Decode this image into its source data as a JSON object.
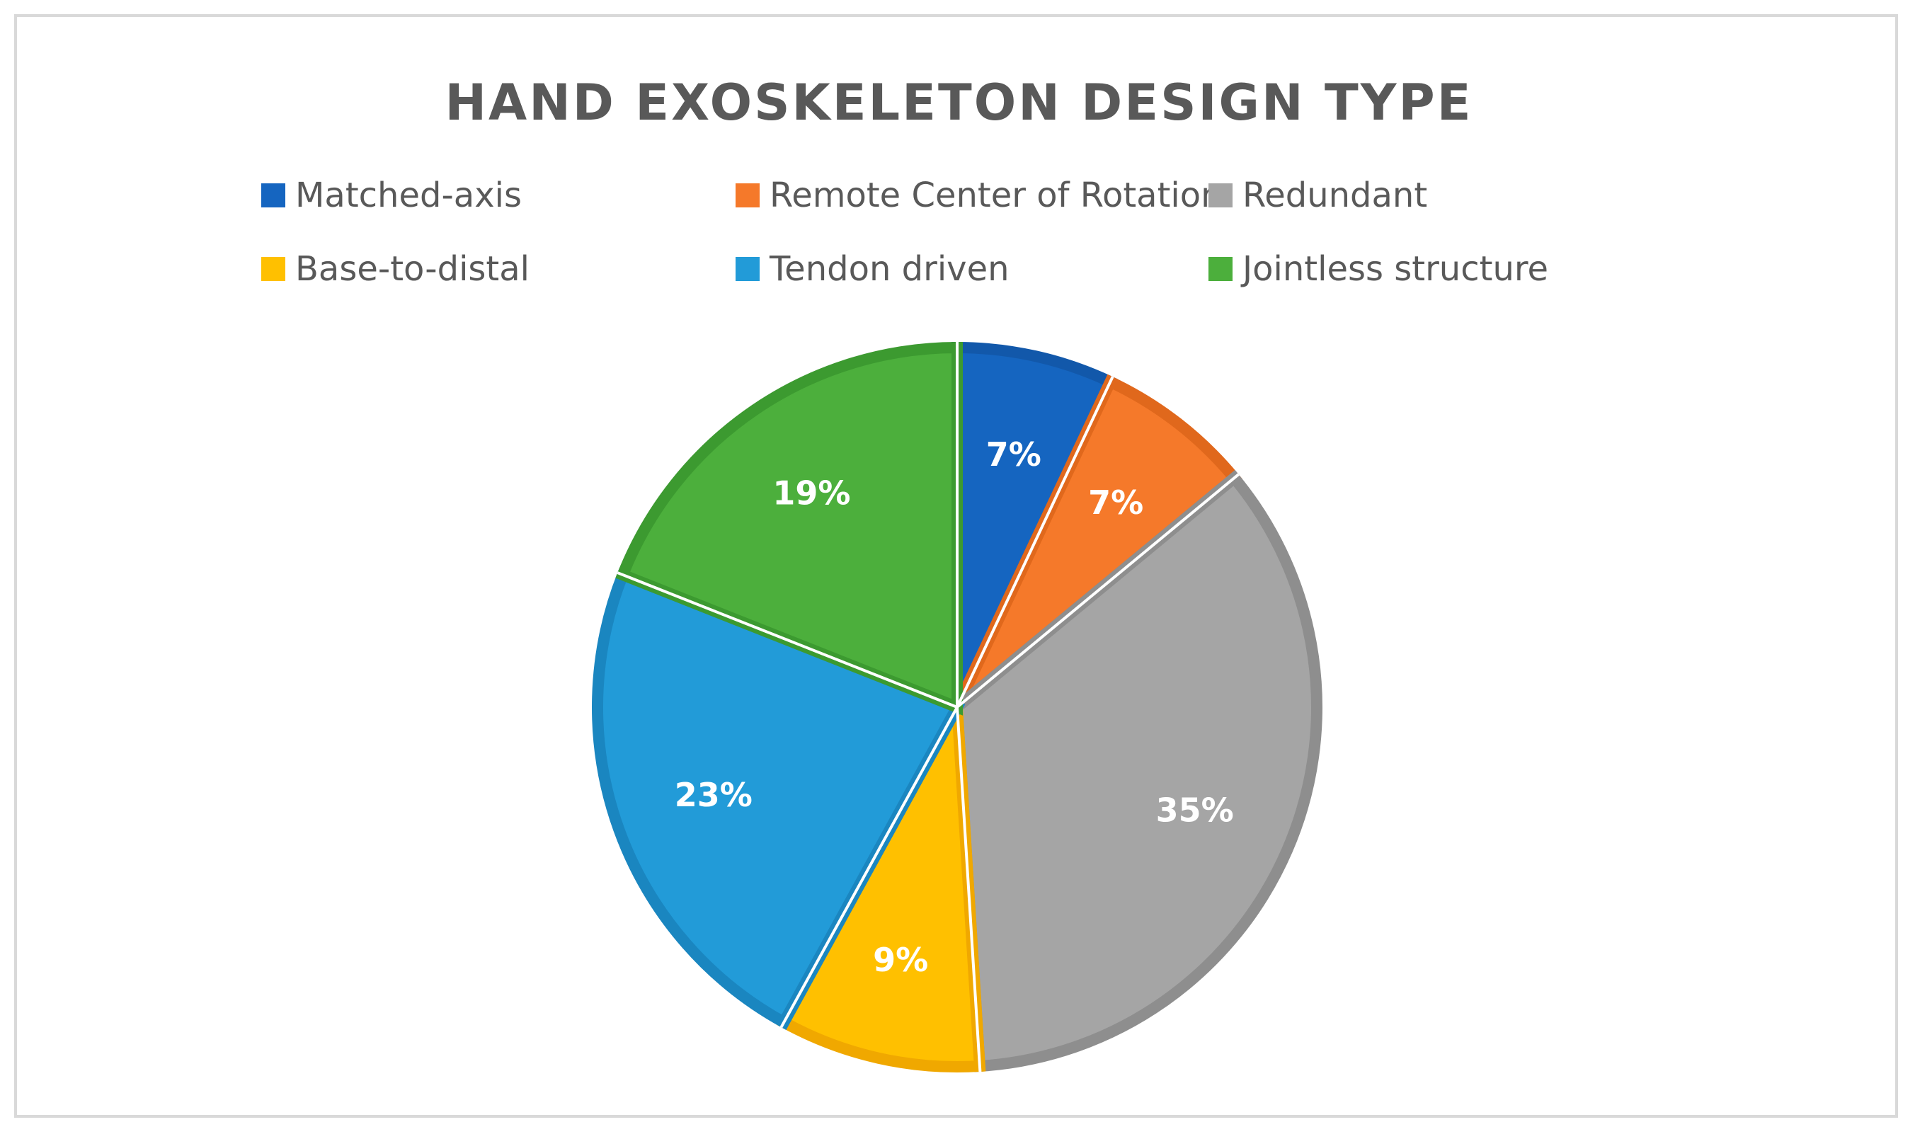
{
  "chart_data": {
    "type": "pie",
    "title": "HAND EXOSKELETON DESIGN TYPE",
    "legend_position": "top",
    "slices": [
      {
        "name": "Matched-axis",
        "value": 7,
        "label": "7%",
        "color": "#1565C0",
        "edge": "#1258AA"
      },
      {
        "name": "Remote Center of Rotation",
        "value": 7,
        "label": "7%",
        "color": "#F5792A",
        "edge": "#E0681C"
      },
      {
        "name": "Redundant",
        "value": 35,
        "label": "35%",
        "color": "#A5A5A5",
        "edge": "#8E8E8E"
      },
      {
        "name": "Base-to-distal",
        "value": 9,
        "label": "9%",
        "color": "#FFC000",
        "edge": "#F0A800"
      },
      {
        "name": "Tendon driven",
        "value": 23,
        "label": "23%",
        "color": "#229BD8",
        "edge": "#1A86C0"
      },
      {
        "name": "Jointless structure",
        "value": 19,
        "label": "19%",
        "color": "#4CAF3C",
        "edge": "#3C9A30"
      }
    ]
  }
}
